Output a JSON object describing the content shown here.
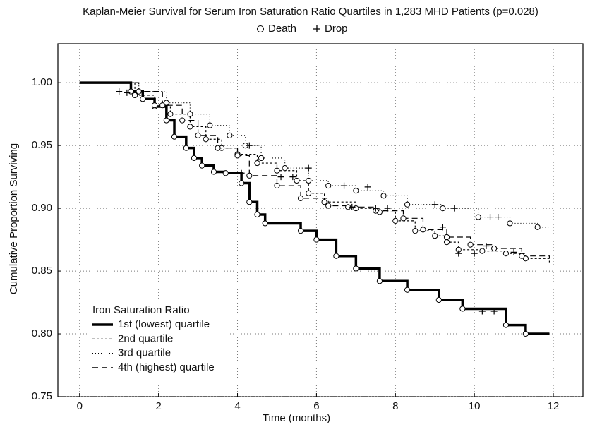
{
  "chart_data": {
    "type": "step",
    "title": "Kaplan-Meier Survival for Serum Iron Saturation Ratio Quartiles in 1,283 MHD Patients (p=0.028)",
    "marker_legend": [
      "Death",
      "Drop"
    ],
    "x_label": "Time (months)",
    "y_label": "Cumulative Proportion Surviving",
    "legend_title": "Iron Saturation Ratio",
    "legend_position": "lower left",
    "grid": true,
    "xlim": [
      -0.55,
      12.75
    ],
    "xticks": [
      0,
      2,
      4,
      6,
      8,
      10,
      12
    ],
    "ylim": [
      0.75,
      1.031
    ],
    "yticks": [
      {
        "value": 0.75,
        "label": "0.75"
      },
      {
        "value": 0.8,
        "label": "0.80"
      },
      {
        "value": 0.85,
        "label": "0.85"
      },
      {
        "value": 0.9,
        "label": "0.90"
      },
      {
        "value": 0.95,
        "label": "0.95"
      },
      {
        "value": 1,
        "label": "1.00"
      }
    ],
    "series": [
      {
        "name": "1st (lowest) quartile",
        "color": "#000000",
        "width": 3.5,
        "dash": "none",
        "x": [
          0,
          1.3,
          1.6,
          1.9,
          2.2,
          2.4,
          2.7,
          2.9,
          3.1,
          3.4,
          3.7,
          4.1,
          4.3,
          4.5,
          4.7,
          5.6,
          6.0,
          6.5,
          7.0,
          7.6,
          8.3,
          9.1,
          9.7,
          10.8,
          11.3,
          11.9
        ],
        "values": [
          1.0,
          0.993,
          0.987,
          0.981,
          0.97,
          0.957,
          0.948,
          0.94,
          0.934,
          0.929,
          0.928,
          0.92,
          0.905,
          0.895,
          0.888,
          0.882,
          0.875,
          0.862,
          0.852,
          0.842,
          0.835,
          0.827,
          0.82,
          0.807,
          0.8,
          0.8
        ],
        "drop_x": [
          1.0,
          4.1,
          10.2,
          10.5
        ],
        "drop_values": [
          0.993,
          0.928,
          0.818,
          0.818
        ]
      },
      {
        "name": "2nd quartile",
        "color": "#000000",
        "width": 1.2,
        "dash": "3,3",
        "x": [
          0,
          1.4,
          1.9,
          2.3,
          2.8,
          3.2,
          3.6,
          4.0,
          4.5,
          5.0,
          5.5,
          5.8,
          6.2,
          7.0,
          7.6,
          8.0,
          8.5,
          9.0,
          9.3,
          9.6,
          10.2,
          10.8,
          11.3,
          11.9
        ],
        "values": [
          1.0,
          0.99,
          0.982,
          0.975,
          0.965,
          0.955,
          0.948,
          0.943,
          0.936,
          0.93,
          0.922,
          0.912,
          0.905,
          0.9,
          0.897,
          0.89,
          0.882,
          0.878,
          0.873,
          0.867,
          0.866,
          0.864,
          0.86,
          0.857
        ],
        "drop_x": [
          1.2,
          9.6,
          10.0
        ],
        "drop_values": [
          0.992,
          0.864,
          0.864
        ]
      },
      {
        "name": "3rd quartile",
        "color": "#000000",
        "width": 1.2,
        "dash": "1,3",
        "x": [
          0,
          1.5,
          2.2,
          2.8,
          3.3,
          3.8,
          4.2,
          4.6,
          5.2,
          5.8,
          6.3,
          7.0,
          7.7,
          8.3,
          9.2,
          10.1,
          10.9,
          11.6,
          11.9
        ],
        "values": [
          1.0,
          0.993,
          0.984,
          0.975,
          0.966,
          0.958,
          0.95,
          0.94,
          0.932,
          0.922,
          0.918,
          0.914,
          0.91,
          0.903,
          0.9,
          0.893,
          0.888,
          0.885,
          0.885
        ],
        "drop_x": [
          4.3,
          5.8,
          6.7,
          7.3,
          9.0,
          9.5,
          10.4,
          10.6
        ],
        "drop_values": [
          0.95,
          0.932,
          0.918,
          0.917,
          0.903,
          0.9,
          0.893,
          0.893
        ]
      },
      {
        "name": "4th (highest) quartile",
        "color": "#000000",
        "width": 1.2,
        "dash": "8,5",
        "x": [
          0,
          1.5,
          2.1,
          2.6,
          3.0,
          3.5,
          4.0,
          4.3,
          5.0,
          5.6,
          6.3,
          6.8,
          7.5,
          8.2,
          8.7,
          9.3,
          9.9,
          10.5,
          11.2,
          11.9
        ],
        "values": [
          1.0,
          0.993,
          0.982,
          0.97,
          0.958,
          0.948,
          0.942,
          0.926,
          0.918,
          0.908,
          0.902,
          0.901,
          0.898,
          0.892,
          0.883,
          0.877,
          0.871,
          0.868,
          0.862,
          0.86
        ],
        "drop_x": [
          5.1,
          5.4,
          6.9,
          7.5,
          7.8,
          9.2,
          10.3,
          11.0
        ],
        "drop_values": [
          0.925,
          0.925,
          0.901,
          0.9,
          0.9,
          0.885,
          0.87,
          0.865
        ]
      }
    ]
  }
}
